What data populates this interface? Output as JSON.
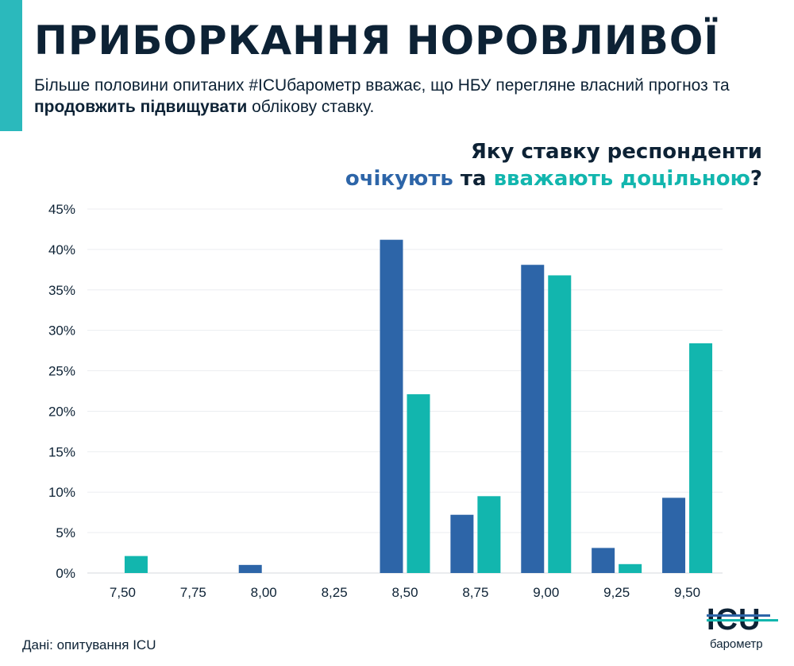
{
  "title": "ПРИБОРКАННЯ НОРОВЛИВОЇ",
  "subtitle": {
    "part1": "Більше половини опитаних #ICUбарометр вважає, що НБУ перегляне власний прогноз та ",
    "bold": "продовжить підвищувати",
    "part2": " облікову ставку."
  },
  "question": {
    "line1": "Яку ставку респонденти",
    "expect": "очікують",
    "and": " та ",
    "consider": "вважають доцільною",
    "qmark": "?"
  },
  "source": "Дані: опитування ICU",
  "logo": {
    "mark": "ICU",
    "sub": "барометр"
  },
  "colors": {
    "expect": "#2d65a8",
    "consider": "#12b6ae",
    "accent": "#2bb9bc",
    "text": "#0d2235"
  },
  "chart_data": {
    "type": "bar",
    "categories": [
      "7,50",
      "7,75",
      "8,00",
      "8,25",
      "8,50",
      "8,75",
      "9,00",
      "9,25",
      "9,50"
    ],
    "series": [
      {
        "name": "очікують",
        "values": [
          0,
          0,
          1.0,
          0,
          41.2,
          7.2,
          38.1,
          3.1,
          9.3
        ]
      },
      {
        "name": "вважають доцільною",
        "values": [
          2.1,
          0,
          0,
          0,
          22.1,
          9.5,
          36.8,
          1.1,
          28.4
        ]
      }
    ],
    "ylim": [
      0,
      45
    ],
    "yticks": [
      0,
      5,
      10,
      15,
      20,
      25,
      30,
      35,
      40,
      45
    ],
    "ytick_labels": [
      "0%",
      "5%",
      "10%",
      "15%",
      "20%",
      "25%",
      "30%",
      "35%",
      "40%",
      "45%"
    ],
    "grid": true
  }
}
